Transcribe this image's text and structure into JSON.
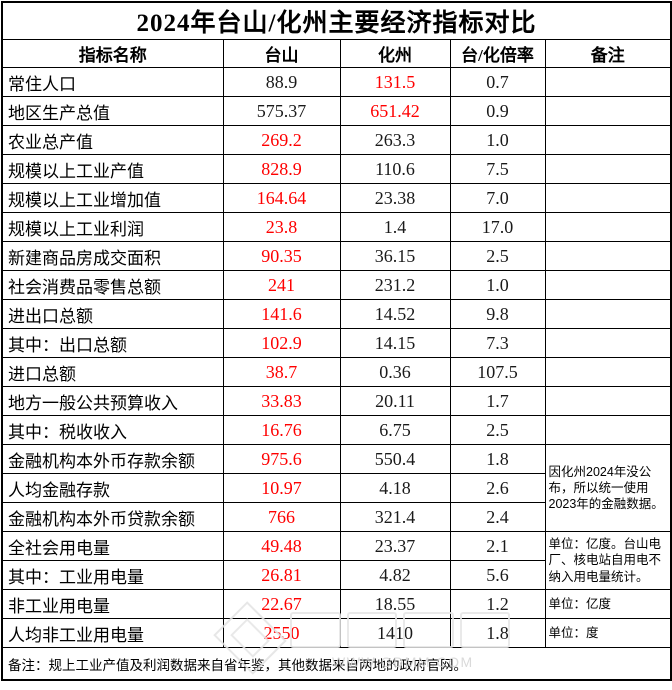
{
  "title": "2024年台山/化州主要经济指标对比",
  "table": {
    "headers": [
      "指标名称",
      "台山",
      "化州",
      "台/化倍率",
      "备注"
    ],
    "rows": [
      {
        "name": "常住人口",
        "values": [
          {
            "v": "88.9",
            "red": false
          },
          {
            "v": "131.5",
            "red": true
          },
          {
            "v": "0.7",
            "red": false
          }
        ],
        "note": "",
        "note_rowspan": 1
      },
      {
        "name": "地区生产总值",
        "values": [
          {
            "v": "575.37",
            "red": false
          },
          {
            "v": "651.42",
            "red": true
          },
          {
            "v": "0.9",
            "red": false
          }
        ],
        "note": "",
        "note_rowspan": 1
      },
      {
        "name": "农业总产值",
        "values": [
          {
            "v": "269.2",
            "red": true
          },
          {
            "v": "263.3",
            "red": false
          },
          {
            "v": "1.0",
            "red": false
          }
        ],
        "note": "",
        "note_rowspan": 1
      },
      {
        "name": "规模以上工业产值",
        "values": [
          {
            "v": "828.9",
            "red": true
          },
          {
            "v": "110.6",
            "red": false
          },
          {
            "v": "7.5",
            "red": false
          }
        ],
        "note": "",
        "note_rowspan": 1
      },
      {
        "name": "规模以上工业增加值",
        "values": [
          {
            "v": "164.64",
            "red": true
          },
          {
            "v": "23.38",
            "red": false
          },
          {
            "v": "7.0",
            "red": false
          }
        ],
        "note": "",
        "note_rowspan": 1
      },
      {
        "name": "规模以上工业利润",
        "values": [
          {
            "v": "23.8",
            "red": true
          },
          {
            "v": "1.4",
            "red": false
          },
          {
            "v": "17.0",
            "red": false
          }
        ],
        "note": "",
        "note_rowspan": 1
      },
      {
        "name": "新建商品房成交面积",
        "values": [
          {
            "v": "90.35",
            "red": true
          },
          {
            "v": "36.15",
            "red": false
          },
          {
            "v": "2.5",
            "red": false
          }
        ],
        "note": "",
        "note_rowspan": 1
      },
      {
        "name": "社会消费品零售总额",
        "values": [
          {
            "v": "241",
            "red": true
          },
          {
            "v": "231.2",
            "red": false
          },
          {
            "v": "1.0",
            "red": false
          }
        ],
        "note": "",
        "note_rowspan": 1
      },
      {
        "name": "进出口总额",
        "values": [
          {
            "v": "141.6",
            "red": true
          },
          {
            "v": "14.52",
            "red": false
          },
          {
            "v": "9.8",
            "red": false
          }
        ],
        "note": "",
        "note_rowspan": 1
      },
      {
        "name": "其中：出口总额",
        "values": [
          {
            "v": "102.9",
            "red": true
          },
          {
            "v": "14.15",
            "red": false
          },
          {
            "v": "7.3",
            "red": false
          }
        ],
        "note": "",
        "note_rowspan": 1
      },
      {
        "name": "进口总额",
        "values": [
          {
            "v": "38.7",
            "red": true
          },
          {
            "v": "0.36",
            "red": false
          },
          {
            "v": "107.5",
            "red": false
          }
        ],
        "note": "",
        "note_rowspan": 1
      },
      {
        "name": "地方一般公共预算收入",
        "values": [
          {
            "v": "33.83",
            "red": true
          },
          {
            "v": "20.11",
            "red": false
          },
          {
            "v": "1.7",
            "red": false
          }
        ],
        "note": "",
        "note_rowspan": 1
      },
      {
        "name": "其中：税收收入",
        "values": [
          {
            "v": "16.76",
            "red": true
          },
          {
            "v": "6.75",
            "red": false
          },
          {
            "v": "2.5",
            "red": false
          }
        ],
        "note": "",
        "note_rowspan": 1
      },
      {
        "name": "金融机构本外币存款余额",
        "values": [
          {
            "v": "975.6",
            "red": true
          },
          {
            "v": "550.4",
            "red": false
          },
          {
            "v": "1.8",
            "red": false
          }
        ],
        "note": "因化州2024年没公布，所以统一使用2023年的金融数据。",
        "note_rowspan": 3
      },
      {
        "name": "人均金融存款",
        "values": [
          {
            "v": "10.97",
            "red": true
          },
          {
            "v": "4.18",
            "red": false
          },
          {
            "v": "2.6",
            "red": false
          }
        ],
        "note": null,
        "note_rowspan": 0
      },
      {
        "name": "金融机构本外币贷款余额",
        "values": [
          {
            "v": "766",
            "red": true
          },
          {
            "v": "321.4",
            "red": false
          },
          {
            "v": "2.4",
            "red": false
          }
        ],
        "note": null,
        "note_rowspan": 0
      },
      {
        "name": "全社会用电量",
        "values": [
          {
            "v": "49.48",
            "red": true
          },
          {
            "v": "23.37",
            "red": false
          },
          {
            "v": "2.1",
            "red": false
          }
        ],
        "note": "单位：亿度。台山电厂、核电站自用电不纳入用电量统计。",
        "note_rowspan": 2
      },
      {
        "name": "其中：工业用电量",
        "values": [
          {
            "v": "26.81",
            "red": true
          },
          {
            "v": "4.82",
            "red": false
          },
          {
            "v": "5.6",
            "red": false
          }
        ],
        "note": null,
        "note_rowspan": 0
      },
      {
        "name": "非工业用电量",
        "values": [
          {
            "v": "22.67",
            "red": true
          },
          {
            "v": "18.55",
            "red": false
          },
          {
            "v": "1.2",
            "red": false
          }
        ],
        "note": "单位：亿度",
        "note_rowspan": 1
      },
      {
        "name": "人均非工业用电量",
        "values": [
          {
            "v": "2550",
            "red": true
          },
          {
            "v": "1410",
            "red": false
          },
          {
            "v": "1.8",
            "red": false
          }
        ],
        "note": "单位：度",
        "note_rowspan": 1
      }
    ]
  },
  "footer": {
    "text": "备注：规上工业产值及利润数据来自省年鉴，其他数据来自两地的政府官网。"
  },
  "watermark": {
    "url": "WWW.GDMM.COM"
  },
  "colors": {
    "highlight_red": "#ff0000",
    "border": "#000000",
    "text": "#000000",
    "watermark_gray": "#d4d4d4"
  }
}
